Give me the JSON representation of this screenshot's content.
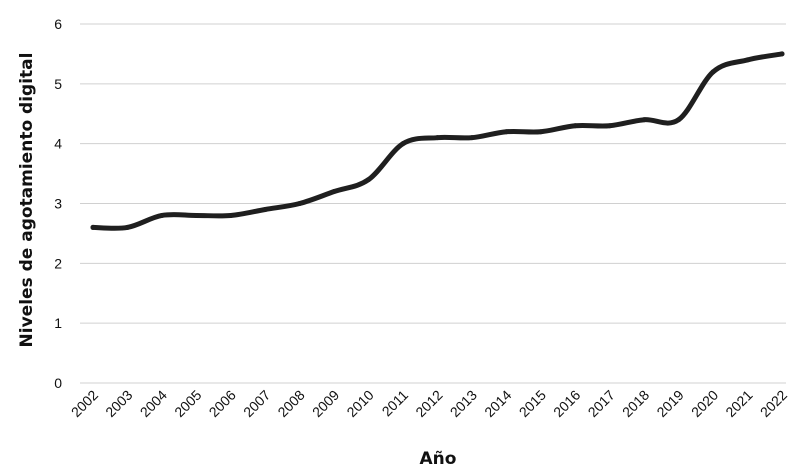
{
  "chart_data": {
    "type": "line",
    "title": "",
    "xlabel": "Año",
    "ylabel": "Niveles de agotamiento digital",
    "ylim": [
      0,
      6
    ],
    "yticks": [
      "0",
      "1",
      "2",
      "3",
      "4",
      "5",
      "6"
    ],
    "grid": true,
    "categories": [
      "2002",
      "2003",
      "2004",
      "2005",
      "2006",
      "2007",
      "2008",
      "2009",
      "2010",
      "2011",
      "2012",
      "2013",
      "2014",
      "2015",
      "2016",
      "2017",
      "2018",
      "2019",
      "2020",
      "2021",
      "2022"
    ],
    "series": [
      {
        "values": [
          2.6,
          2.6,
          2.8,
          2.8,
          2.8,
          2.9,
          3.0,
          3.2,
          3.4,
          4.0,
          4.1,
          4.1,
          4.2,
          4.2,
          4.3,
          4.3,
          4.4,
          4.4,
          5.2,
          5.4,
          5.5
        ],
        "color": "#1f1f1f"
      }
    ]
  }
}
